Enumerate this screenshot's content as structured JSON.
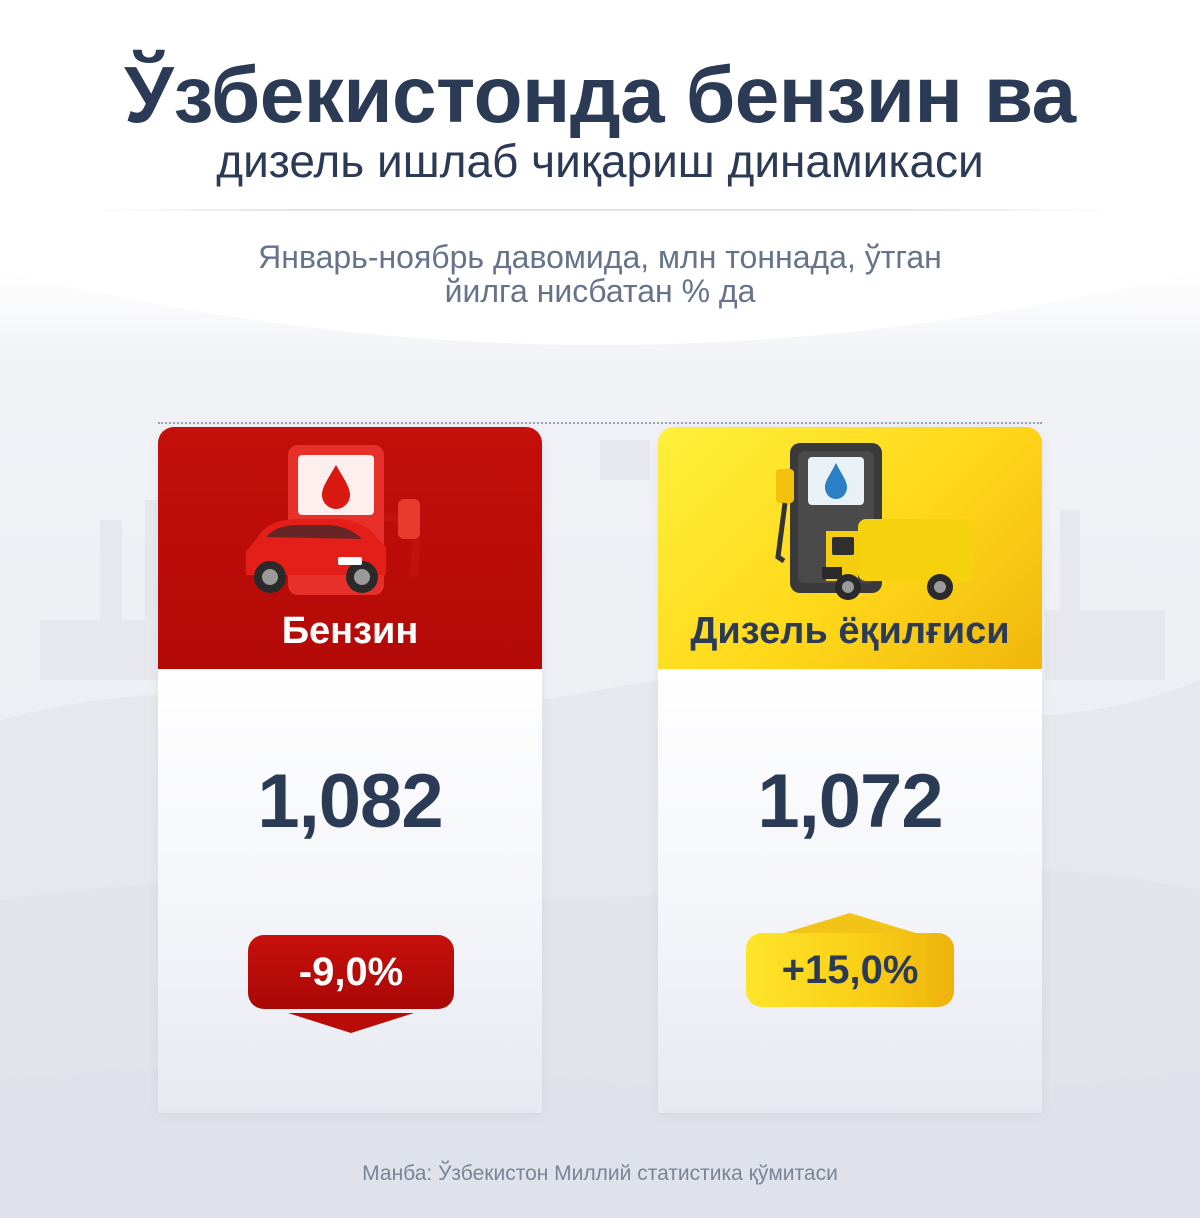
{
  "title": {
    "line1": "Ўзбекистонда бензин ва",
    "line2": "дизель ишлаб чиқариш динамикаси"
  },
  "subtitle": {
    "line1": "Январь-ноябрь давомида, млн тоннада, ўтган",
    "line2": "йилга нисбатан % да"
  },
  "cards": [
    {
      "label": "Бензин",
      "value": "1,082",
      "change": "-9,0%",
      "direction": "down",
      "accent": "#c00e0a",
      "icon": "red-fuel-pump-and-car-icon"
    },
    {
      "label": "Дизель ёқилғиси",
      "value": "1,072",
      "change": "+15,0%",
      "direction": "up",
      "accent": "#f7c716",
      "icon": "yellow-fuel-pump-and-truck-icon"
    }
  ],
  "source": "Манба: Ўзбекистон Миллий статистика қўмитаси",
  "colors": {
    "text_dark": "#2b3a55",
    "text_muted": "#66738a",
    "benzin_red": "#c00e0a",
    "diesel_yellow": "#f7c716"
  }
}
